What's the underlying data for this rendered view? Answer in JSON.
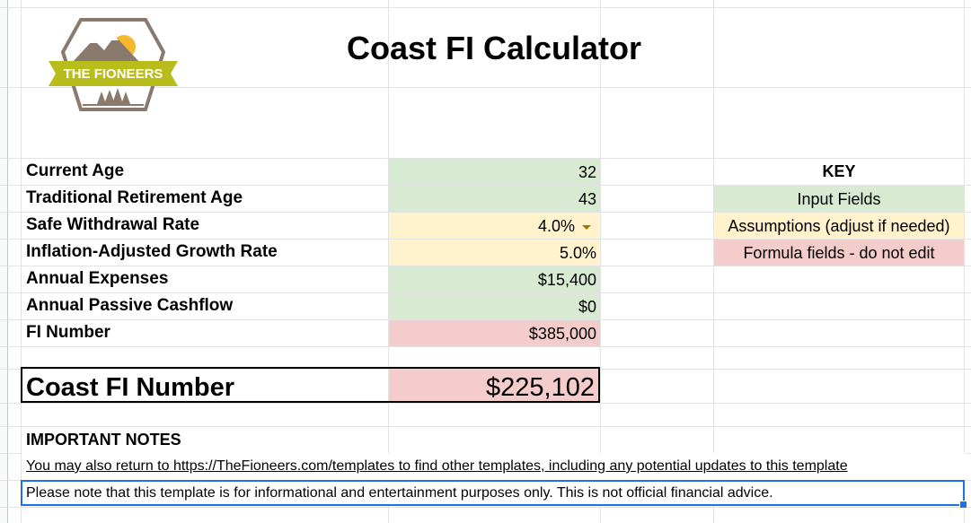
{
  "title": "Coast FI Calculator",
  "logo": {
    "text": "THE FIONEERS",
    "colors": {
      "outline": "#8a7a6e",
      "banner": "#b8bd1c",
      "sun": "#f5b82e",
      "mountain": "#8a7a6e",
      "trees": "#8a7a6e"
    }
  },
  "inputs": [
    {
      "label": "Current Age",
      "value": "32",
      "type": "input"
    },
    {
      "label": "Traditional Retirement Age",
      "value": "43",
      "type": "input"
    },
    {
      "label": "Safe Withdrawal Rate",
      "value": "4.0%",
      "type": "assumption",
      "dropdown": true
    },
    {
      "label": "Inflation-Adjusted Growth Rate",
      "value": "5.0%",
      "type": "assumption"
    },
    {
      "label": "Annual Expenses",
      "value": "$15,400",
      "type": "input"
    },
    {
      "label": "Annual Passive Cashflow",
      "value": "$0",
      "type": "input"
    },
    {
      "label": "FI Number",
      "value": "$385,000",
      "type": "formula"
    }
  ],
  "coast": {
    "label": "Coast FI Number",
    "value": "$225,102"
  },
  "key": {
    "heading": "KEY",
    "items": [
      {
        "label": "Input Fields",
        "type": "input"
      },
      {
        "label": "Assumptions (adjust if needed)",
        "type": "assumption"
      },
      {
        "label": "Formula fields - do not edit",
        "type": "formula"
      }
    ]
  },
  "notes": {
    "heading": "IMPORTANT NOTES",
    "line1": "You may also return to https://TheFioneers.com/templates to find other templates, including any potential updates to this template",
    "line2": "Please note that this template is for informational and entertainment purposes only. This is not official financial advice."
  },
  "colors": {
    "input": "#d9ead3",
    "assumption": "#fff2cc",
    "formula": "#f4cccc",
    "selection": "#1a73e8",
    "grid": "#e2e3e3"
  }
}
